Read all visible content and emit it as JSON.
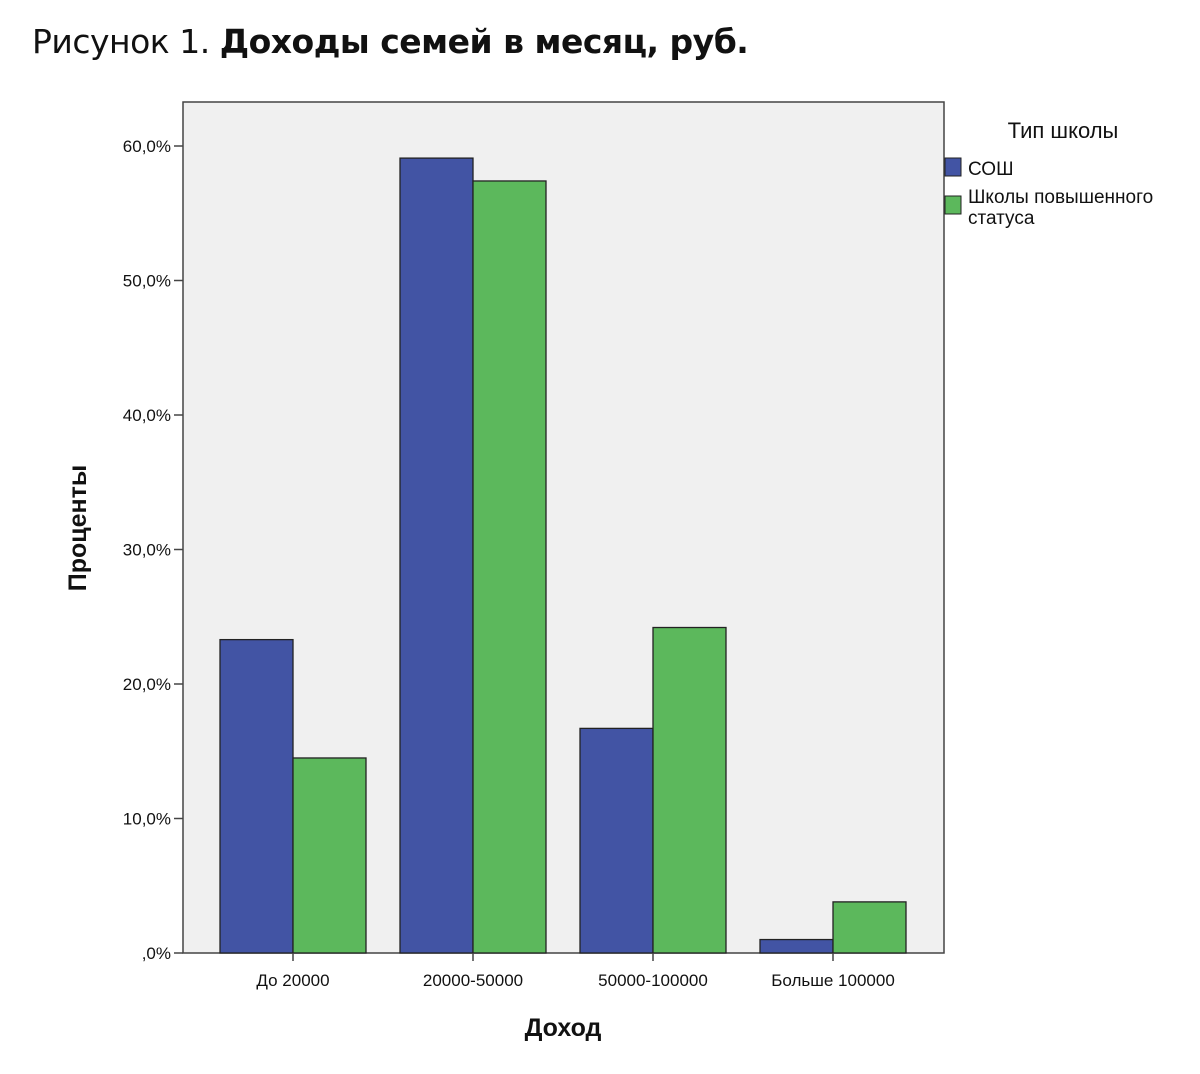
{
  "figure": {
    "prefix": "Рисунок 1. ",
    "title": "Доходы семей в месяц, руб."
  },
  "chart_data": {
    "type": "bar",
    "xlabel": "Доход",
    "ylabel": "Проценты",
    "ylim": [
      0,
      60
    ],
    "y_ticks": [
      0,
      10,
      20,
      30,
      40,
      50,
      60
    ],
    "y_tick_labels": [
      ",0%",
      "10,0%",
      "20,0%",
      "30,0%",
      "40,0%",
      "50,0%",
      "60,0%"
    ],
    "categories": [
      "До 20000",
      "20000-50000",
      "50000-100000",
      "Больше 100000"
    ],
    "series": [
      {
        "name": "СОШ",
        "color": "#4254a4",
        "values": [
          23.3,
          59.1,
          16.7,
          1.0
        ]
      },
      {
        "name": "Школы повышенного статуса",
        "color": "#5cb85c",
        "values": [
          14.5,
          57.4,
          24.2,
          3.8
        ]
      }
    ],
    "legend": {
      "title": "Тип школы",
      "placement": "right",
      "labels": [
        "СОШ",
        "Школы повышенного",
        "статуса"
      ]
    },
    "plot_background": "#f0f0f0",
    "grid": false
  }
}
